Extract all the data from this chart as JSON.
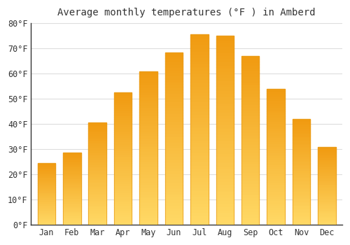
{
  "title": "Average monthly temperatures (°F ) in Amberd",
  "months": [
    "Jan",
    "Feb",
    "Mar",
    "Apr",
    "May",
    "Jun",
    "Jul",
    "Aug",
    "Sep",
    "Oct",
    "Nov",
    "Dec"
  ],
  "values": [
    24.5,
    28.5,
    40.5,
    52.5,
    61,
    68.5,
    75.5,
    75,
    67,
    54,
    42,
    31
  ],
  "bar_color_main": "#F5A623",
  "bar_color_light": "#FFD966",
  "bar_edge_color": "#E89B1A",
  "ylim": [
    0,
    80
  ],
  "yticks": [
    0,
    10,
    20,
    30,
    40,
    50,
    60,
    70,
    80
  ],
  "ytick_labels": [
    "0°F",
    "10°F",
    "20°F",
    "30°F",
    "40°F",
    "50°F",
    "60°F",
    "70°F",
    "80°F"
  ],
  "background_color": "#ffffff",
  "plot_bg_color": "#ffffff",
  "grid_color": "#dddddd",
  "title_fontsize": 10,
  "tick_fontsize": 8.5,
  "font_family": "monospace",
  "bar_width": 0.7
}
